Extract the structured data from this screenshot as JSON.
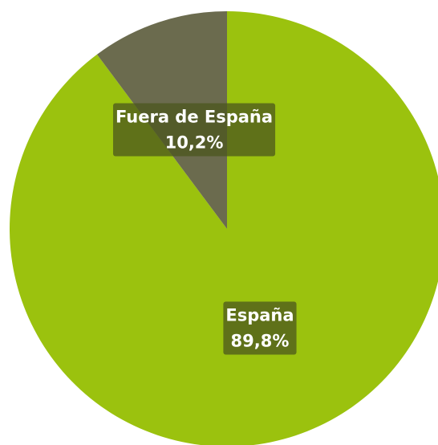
{
  "chart_data": {
    "type": "pie",
    "categories": [
      "España",
      "Fuera de España"
    ],
    "values": [
      89.8,
      10.2
    ],
    "value_labels": [
      "89,8%",
      "10,2%"
    ],
    "colors": [
      "#9bc20e",
      "#6b6b4e"
    ]
  }
}
